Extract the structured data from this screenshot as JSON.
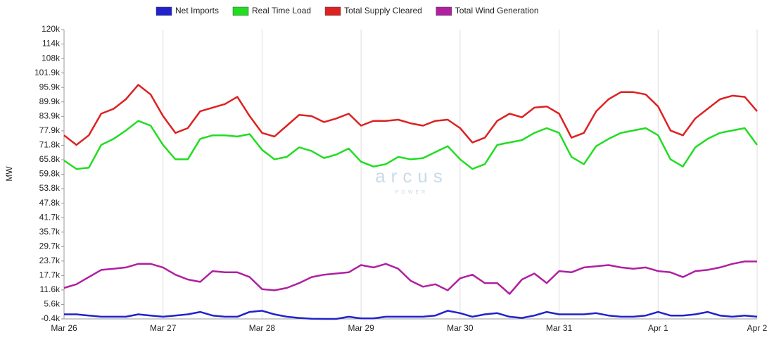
{
  "chart_data": {
    "type": "line",
    "y_label": "MW",
    "watermark": "arcus",
    "watermark_sub": "POWER",
    "categories": [
      "Mar 26",
      null,
      null,
      null,
      null,
      null,
      null,
      null,
      "Mar 27",
      null,
      null,
      null,
      null,
      null,
      null,
      null,
      "Mar 28",
      null,
      null,
      null,
      null,
      null,
      null,
      null,
      "Mar 29",
      null,
      null,
      null,
      null,
      null,
      null,
      null,
      "Mar 30",
      null,
      null,
      null,
      null,
      null,
      null,
      null,
      "Mar 31",
      null,
      null,
      null,
      null,
      null,
      null,
      null,
      "Apr 1",
      null,
      null,
      null,
      null,
      null,
      null,
      null,
      "Apr 2"
    ],
    "series": [
      {
        "name": "Net Imports",
        "color": "#2222cc",
        "values": [
          1500,
          1500,
          1000,
          500,
          500,
          500,
          1500,
          1000,
          500,
          1000,
          1500,
          2500,
          1000,
          500,
          500,
          2500,
          3000,
          1500,
          500,
          0,
          -300,
          -400,
          -400,
          500,
          -200,
          -200,
          500,
          500,
          500,
          500,
          1000,
          3000,
          2000,
          500,
          1500,
          2000,
          500,
          0,
          1000,
          2500,
          1500,
          1500,
          1500,
          2000,
          1000,
          500,
          500,
          1000,
          2500,
          1000,
          1000,
          1500,
          2500,
          1000,
          500,
          1000,
          500
        ]
      },
      {
        "name": "Real Time Load",
        "color": "#22dd22",
        "values": [
          65500,
          62000,
          62500,
          72000,
          74500,
          78000,
          82000,
          80000,
          72000,
          66000,
          66000,
          74500,
          76000,
          76000,
          75500,
          76500,
          70000,
          66000,
          67000,
          71000,
          69500,
          66500,
          68000,
          70500,
          65000,
          63000,
          64000,
          67000,
          66000,
          66500,
          69000,
          71500,
          66000,
          62000,
          64000,
          72000,
          73000,
          74000,
          77000,
          79000,
          77000,
          67000,
          64000,
          71500,
          74500,
          77000,
          78000,
          79000,
          76000,
          66000,
          63000,
          71000,
          74500,
          77000,
          78000,
          79000,
          72000
        ]
      },
      {
        "name": "Total Supply Cleared",
        "color": "#dd2222",
        "values": [
          76000,
          72000,
          76000,
          85000,
          87000,
          91000,
          97000,
          93000,
          84000,
          77000,
          79000,
          86000,
          87500,
          89000,
          92000,
          84000,
          77000,
          75500,
          80000,
          84500,
          84000,
          81500,
          83000,
          85000,
          80000,
          82000,
          82000,
          82500,
          81000,
          80000,
          82000,
          82500,
          79000,
          73000,
          75000,
          82000,
          85000,
          83500,
          87500,
          88000,
          85000,
          75000,
          77000,
          86000,
          91000,
          94000,
          94000,
          93000,
          88000,
          78000,
          76000,
          83000,
          87000,
          91000,
          92500,
          92000,
          86000
        ]
      },
      {
        "name": "Total Wind Generation",
        "color": "#b020a0",
        "values": [
          12500,
          14000,
          17000,
          20000,
          20500,
          21000,
          22500,
          22500,
          21000,
          18000,
          16000,
          15000,
          19500,
          19000,
          19000,
          17000,
          12000,
          11500,
          12500,
          14500,
          17000,
          18000,
          18500,
          19000,
          22000,
          21000,
          22500,
          20500,
          15500,
          13000,
          14000,
          11500,
          16500,
          18000,
          14500,
          14500,
          10000,
          16000,
          18500,
          14500,
          19500,
          19000,
          21000,
          21500,
          22000,
          21000,
          20500,
          21000,
          19500,
          19000,
          17000,
          19500,
          20000,
          21000,
          22500,
          23500,
          23500
        ]
      }
    ],
    "ylim": [
      -400,
      120000
    ],
    "yticks": [
      {
        "value": -400,
        "label": "-0.4k"
      },
      {
        "value": 5620,
        "label": "5.6k"
      },
      {
        "value": 11640,
        "label": "11.6k"
      },
      {
        "value": 17660,
        "label": "17.7k"
      },
      {
        "value": 23680,
        "label": "23.7k"
      },
      {
        "value": 29700,
        "label": "29.7k"
      },
      {
        "value": 35720,
        "label": "35.7k"
      },
      {
        "value": 41740,
        "label": "41.7k"
      },
      {
        "value": 47760,
        "label": "47.8k"
      },
      {
        "value": 53780,
        "label": "53.8k"
      },
      {
        "value": 59800,
        "label": "59.8k"
      },
      {
        "value": 65820,
        "label": "65.8k"
      },
      {
        "value": 71840,
        "label": "71.8k"
      },
      {
        "value": 77860,
        "label": "77.9k"
      },
      {
        "value": 83880,
        "label": "83.9k"
      },
      {
        "value": 89900,
        "label": "89.9k"
      },
      {
        "value": 95920,
        "label": "95.9k"
      },
      {
        "value": 101940,
        "label": "101.9k"
      },
      {
        "value": 107960,
        "label": "108k"
      },
      {
        "value": 113980,
        "label": "114k"
      },
      {
        "value": 120000,
        "label": "120k"
      }
    ],
    "grid": "x",
    "legend": "top"
  }
}
